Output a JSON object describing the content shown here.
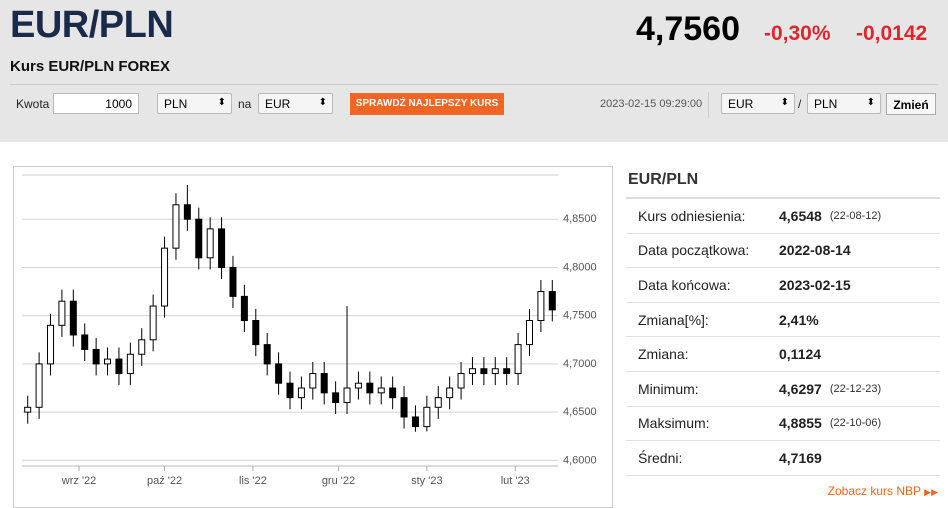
{
  "header": {
    "title": "EUR/PLN",
    "subtitle": "Kurs EUR/PLN FOREX",
    "rate": "4,7560",
    "change_pct": "-0,30%",
    "change": "-0,0142"
  },
  "converter": {
    "amount_label": "Kwota",
    "amount": "1000",
    "from": "PLN",
    "between": "na",
    "to": "EUR",
    "button": "SPRAWDŹ NAJLEPSZY KURS",
    "datetime": "2023-02-15 09:29:00",
    "pair_from": "EUR",
    "slash": "/",
    "pair_to": "PLN",
    "change_button": "Zmień"
  },
  "chart_data": {
    "type": "candlestick",
    "x": [
      0,
      4,
      8,
      12,
      16,
      20,
      24,
      28,
      32,
      36,
      40,
      44,
      48,
      52,
      56,
      60,
      64,
      68,
      72,
      76,
      80,
      84,
      88,
      92,
      96,
      100,
      104,
      108,
      112,
      116,
      120,
      124,
      128,
      132,
      136,
      140,
      144,
      148,
      152,
      156,
      160,
      164,
      168,
      172,
      176,
      180,
      184
    ],
    "open": [
      4.65,
      4.655,
      4.7,
      4.74,
      4.765,
      4.73,
      4.715,
      4.7,
      4.705,
      4.69,
      4.71,
      4.725,
      4.76,
      4.82,
      4.865,
      4.85,
      4.81,
      4.84,
      4.8,
      4.77,
      4.745,
      4.72,
      4.7,
      4.68,
      4.665,
      4.675,
      4.69,
      4.67,
      4.66,
      4.675,
      4.68,
      4.67,
      4.675,
      4.665,
      4.645,
      4.635,
      4.655,
      4.665,
      4.675,
      4.69,
      4.695,
      4.69,
      4.695,
      4.69,
      4.72,
      4.745,
      4.775
    ],
    "high": [
      4.667,
      4.712,
      4.752,
      4.777,
      4.777,
      4.742,
      4.727,
      4.717,
      4.717,
      4.722,
      4.737,
      4.772,
      4.832,
      4.877,
      4.8855,
      4.862,
      4.852,
      4.852,
      4.812,
      4.782,
      4.757,
      4.732,
      4.712,
      4.692,
      4.687,
      4.702,
      4.702,
      4.682,
      4.76,
      4.692,
      4.692,
      4.687,
      4.687,
      4.677,
      4.657,
      4.667,
      4.677,
      4.687,
      4.702,
      4.707,
      4.707,
      4.707,
      4.707,
      4.732,
      4.757,
      4.787,
      4.787
    ],
    "low": [
      4.638,
      4.643,
      4.688,
      4.728,
      4.718,
      4.703,
      4.688,
      4.688,
      4.678,
      4.678,
      4.698,
      4.713,
      4.748,
      4.808,
      4.838,
      4.798,
      4.798,
      4.788,
      4.758,
      4.733,
      4.708,
      4.688,
      4.668,
      4.653,
      4.653,
      4.663,
      4.658,
      4.648,
      4.648,
      4.663,
      4.658,
      4.658,
      4.653,
      4.633,
      4.6297,
      4.63,
      4.643,
      4.653,
      4.663,
      4.678,
      4.678,
      4.678,
      4.678,
      4.678,
      4.708,
      4.733,
      4.744
    ],
    "close": [
      4.655,
      4.7,
      4.74,
      4.765,
      4.73,
      4.715,
      4.7,
      4.705,
      4.69,
      4.71,
      4.725,
      4.76,
      4.82,
      4.865,
      4.85,
      4.81,
      4.84,
      4.8,
      4.77,
      4.745,
      4.72,
      4.7,
      4.68,
      4.665,
      4.675,
      4.69,
      4.67,
      4.66,
      4.675,
      4.68,
      4.67,
      4.675,
      4.665,
      4.645,
      4.635,
      4.655,
      4.665,
      4.675,
      4.69,
      4.695,
      4.69,
      4.695,
      4.69,
      4.72,
      4.745,
      4.775,
      4.756
    ],
    "color": "#000000",
    "xlim": [
      -2,
      186
    ],
    "ylim": [
      4.59,
      4.9
    ],
    "xticks": [
      {
        "value": 18,
        "label": "wrz '22"
      },
      {
        "value": 48,
        "label": "paź '22"
      },
      {
        "value": 79,
        "label": "lis '22"
      },
      {
        "value": 109,
        "label": "gru '22"
      },
      {
        "value": 140,
        "label": "sty '23"
      },
      {
        "value": 171,
        "label": "lut '23"
      }
    ],
    "yticks": [
      {
        "value": 4.6,
        "label": "4,6000"
      },
      {
        "value": 4.65,
        "label": "4,6500"
      },
      {
        "value": 4.7,
        "label": "4,7000"
      },
      {
        "value": 4.75,
        "label": "4,7500"
      },
      {
        "value": 4.8,
        "label": "4,8000"
      },
      {
        "value": 4.85,
        "label": "4,8500"
      }
    ],
    "grid": true
  },
  "stats": {
    "title": "EUR/PLN",
    "rows": [
      {
        "label": "Kurs odniesienia:",
        "value": "4,6548",
        "date": "(22-08-12)"
      },
      {
        "label": "Data początkowa:",
        "value": "2022-08-14"
      },
      {
        "label": "Data końcowa:",
        "value": "2023-02-15"
      },
      {
        "label": "Zmiana[%]:",
        "value": "2,41%"
      },
      {
        "label": "Zmiana:",
        "value": "0,1124"
      },
      {
        "label": "Minimum:",
        "value": "4,6297",
        "date": "(22-12-23)"
      },
      {
        "label": "Maksimum:",
        "value": "4,8855",
        "date": "(22-10-06)"
      },
      {
        "label": "Średni:",
        "value": "4,7169"
      }
    ],
    "link": "Zobacz kurs NBP"
  }
}
